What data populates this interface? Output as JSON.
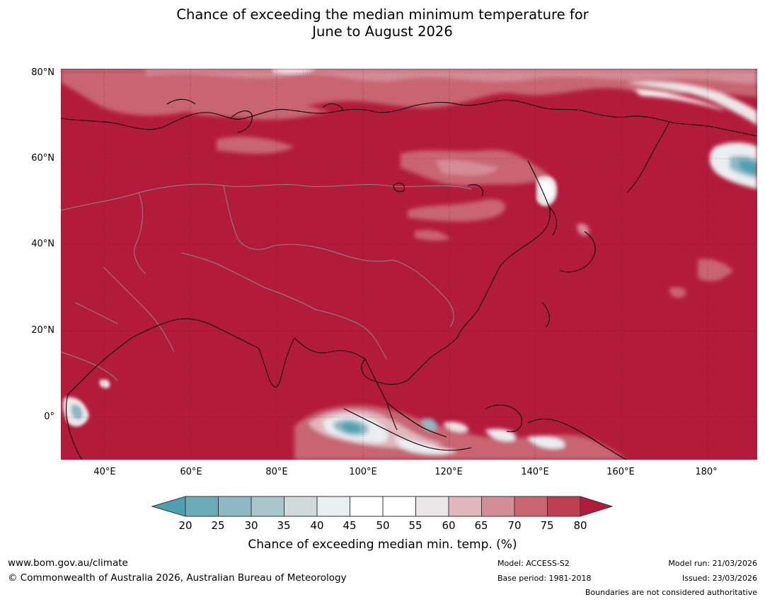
{
  "title": {
    "line1": "Chance of exceeding the median minimum temperature for",
    "line2": "June to August 2026"
  },
  "map": {
    "lat_labels": [
      "80°N",
      "60°N",
      "40°N",
      "20°N",
      "0°"
    ],
    "lon_labels": [
      "40°E",
      "60°E",
      "80°E",
      "100°E",
      "120°E",
      "140°E",
      "160°E",
      "180°"
    ],
    "lat_range": [
      -10,
      80
    ],
    "lon_range": [
      30,
      191
    ],
    "dominant_color": "#b31b3a"
  },
  "colorbar": {
    "ticks": [
      "20",
      "25",
      "30",
      "35",
      "40",
      "45",
      "50",
      "55",
      "60",
      "65",
      "70",
      "75",
      "80"
    ],
    "colors": [
      "#6aabb8",
      "#8cb9c4",
      "#a9c7cb",
      "#d1d9da",
      "#e9eef0",
      "#ffffff",
      "#ffffff",
      "#ebe6e7",
      "#dfb7bd",
      "#d48c96",
      "#c86571",
      "#bd3f50"
    ],
    "under_color": "#4ba1b1",
    "over_color": "#b11c3a",
    "label": "Chance of exceeding median min. temp. (%)"
  },
  "footer": {
    "website": "www.bom.gov.au/climate",
    "copyright": "© Commonwealth of Australia 2026, Australian Bureau of Meteorology",
    "model": "Model: ACCESS-S2",
    "base_period": "Base period: 1981-2018",
    "model_run": "Model run: 21/03/2026",
    "issued": "Issued: 23/03/2026",
    "disclaimer": "Boundaries are not considered authoritative"
  }
}
